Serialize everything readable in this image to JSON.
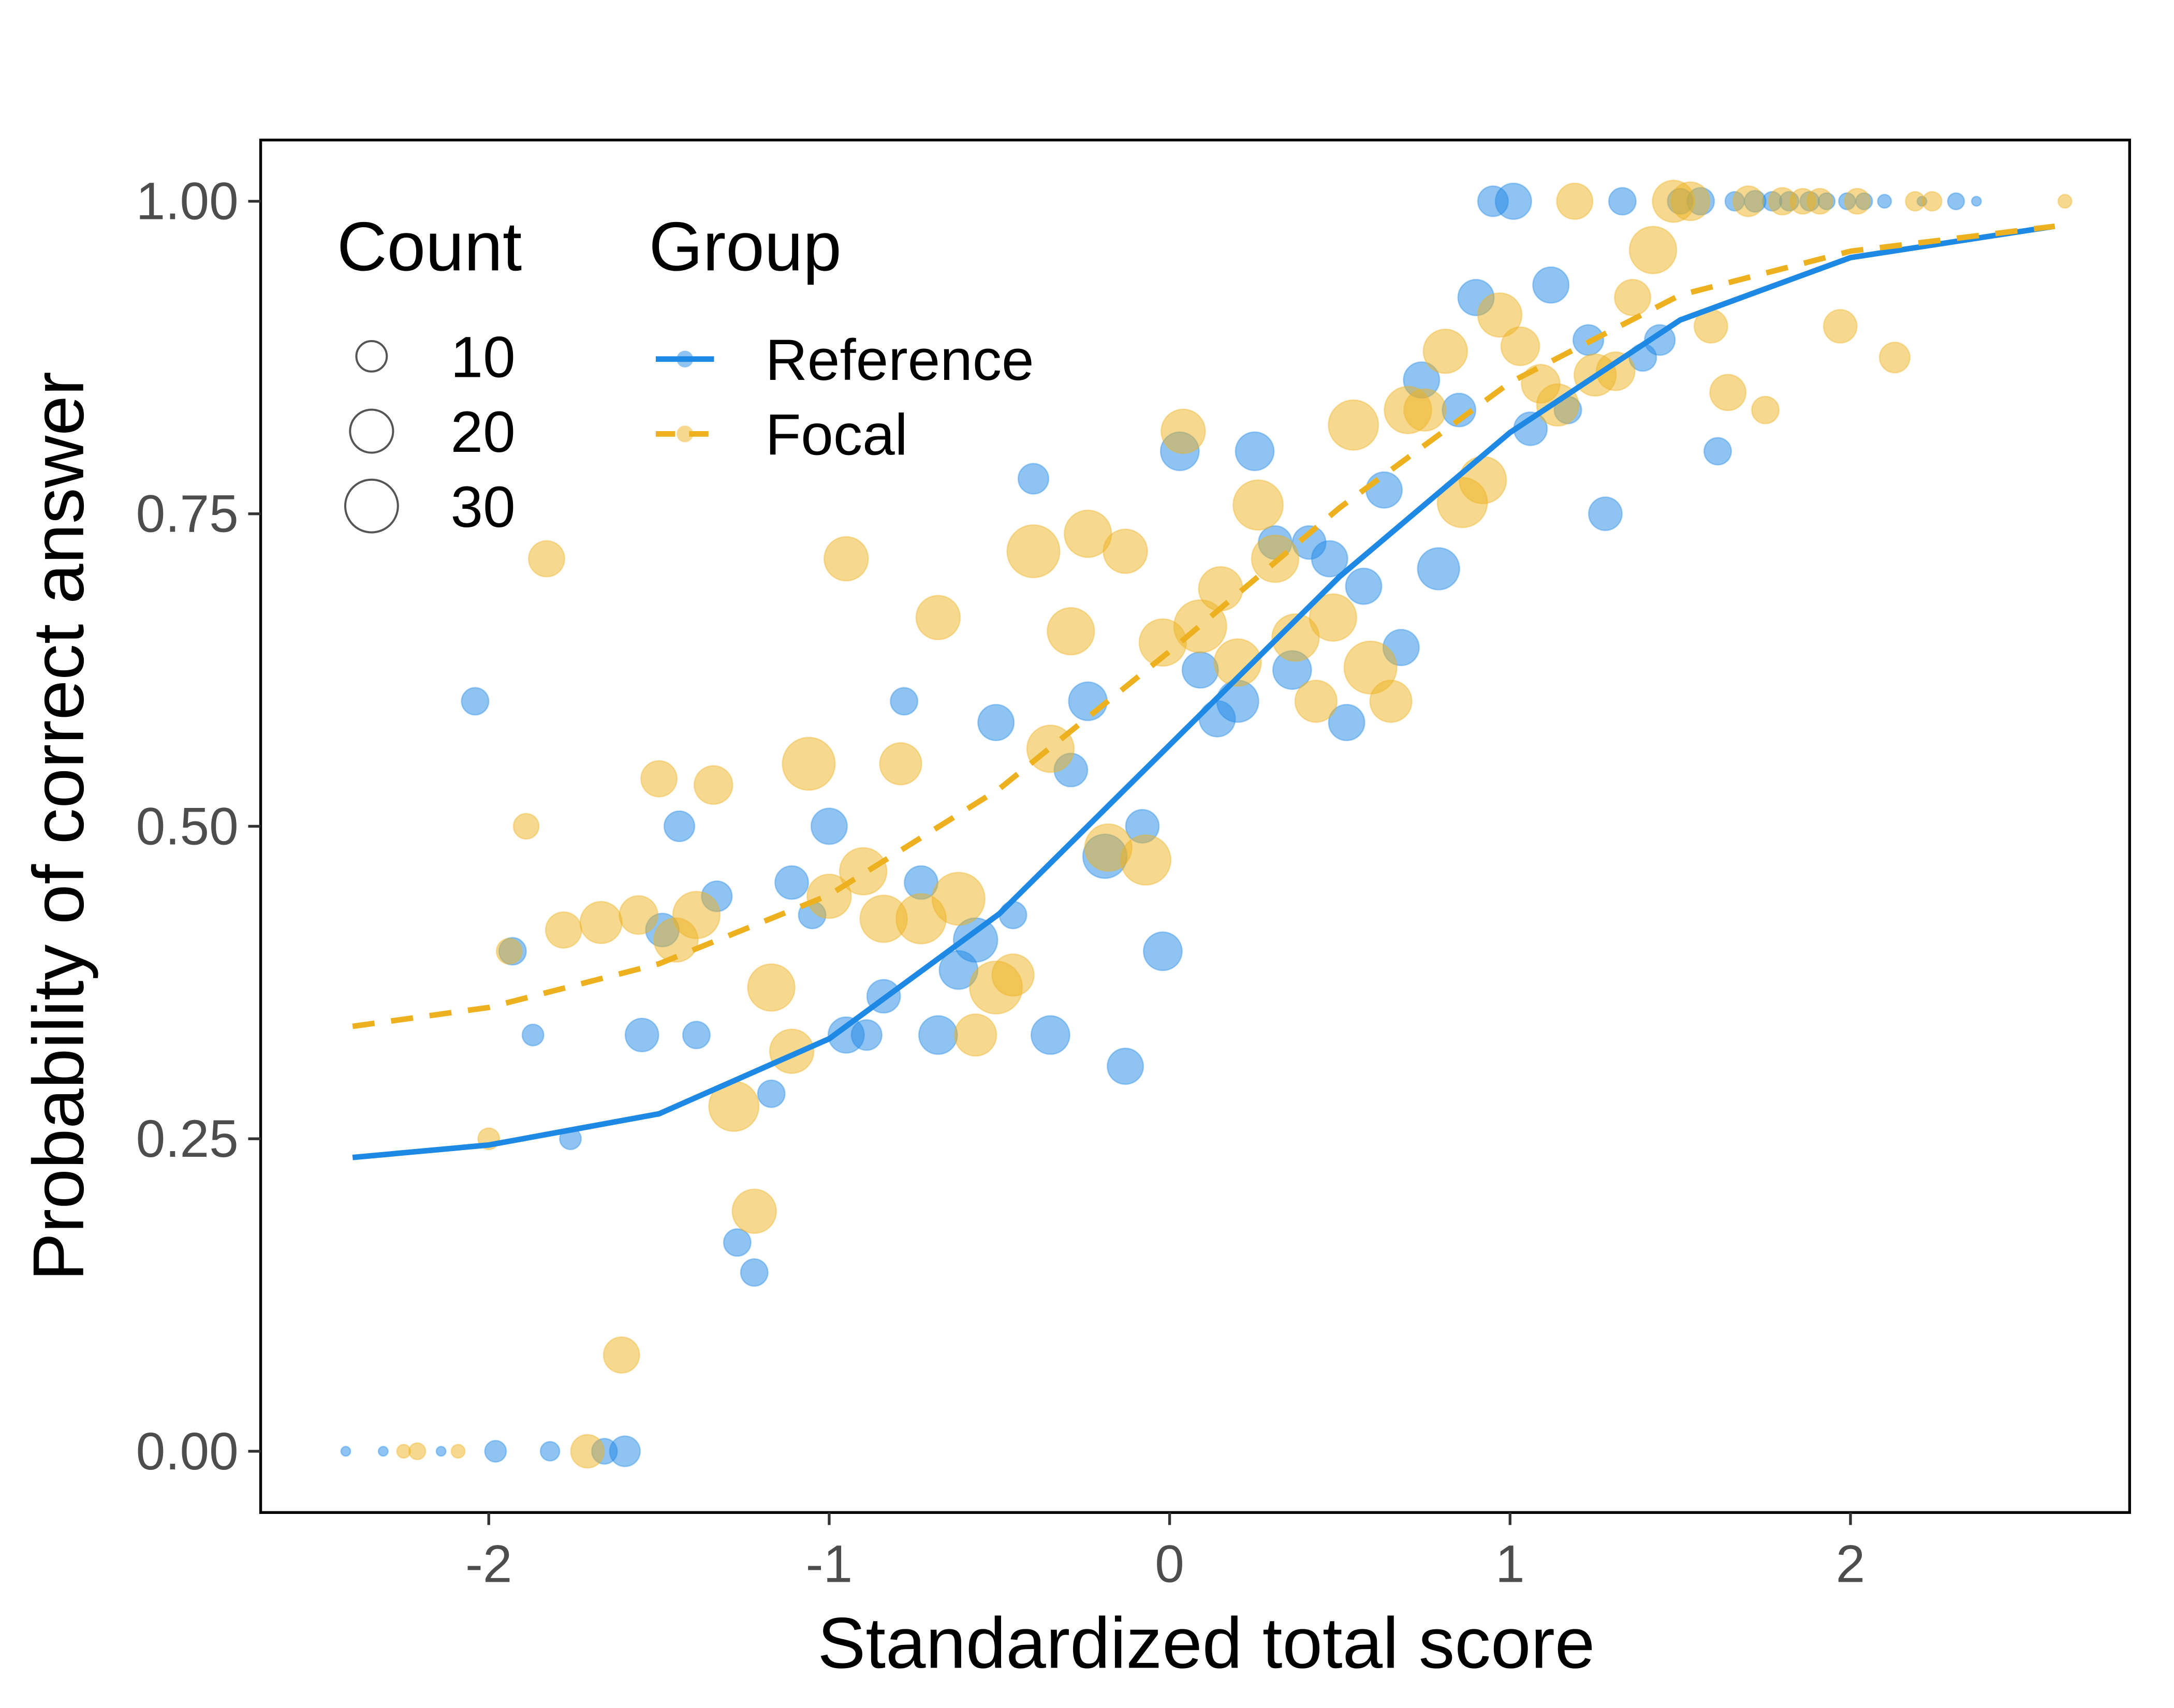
{
  "chart_data": {
    "type": "scatter",
    "xlabel": "Standardized total score",
    "ylabel": "Probability of correct answer",
    "xlim": [
      -2.67,
      2.82
    ],
    "ylim": [
      -0.049,
      1.049
    ],
    "xticks": [
      -2,
      -1,
      0,
      1,
      2
    ],
    "yticks": [
      {
        "value": 0,
        "label": "0.00"
      },
      {
        "value": 0.25,
        "label": "0.25"
      },
      {
        "value": 0.5,
        "label": "0.50"
      },
      {
        "value": 0.75,
        "label": "0.75"
      },
      {
        "value": 1,
        "label": "1.00"
      }
    ],
    "grid": false,
    "size_legend": {
      "title": "Count",
      "values": [
        10,
        20,
        30
      ]
    },
    "group_legend_title": "Group",
    "series": [
      {
        "name": "Reference",
        "color": "#1E88E5",
        "linestyle": "solid",
        "x": [
          -2.42,
          -2.31,
          -2.14,
          -1.98,
          -1.82,
          -1.66,
          -1.6,
          -2.04,
          -1.93,
          -1.87,
          -1.76,
          -1.55,
          -1.49,
          -1.44,
          -1.39,
          -1.33,
          -1.27,
          -1.22,
          -1.17,
          -1.11,
          -1.05,
          -1.0,
          -0.95,
          -0.89,
          -0.84,
          -0.78,
          -0.73,
          -0.68,
          -0.62,
          -0.57,
          -0.51,
          -0.46,
          -0.4,
          -0.35,
          -0.29,
          -0.24,
          -0.19,
          -0.13,
          -0.08,
          -0.02,
          0.03,
          0.09,
          0.14,
          0.2,
          0.25,
          0.31,
          0.36,
          0.41,
          0.47,
          0.52,
          0.57,
          0.63,
          0.68,
          0.74,
          0.79,
          0.85,
          0.9,
          0.95,
          1.01,
          1.06,
          1.12,
          1.17,
          1.23,
          1.28,
          1.33,
          1.39,
          1.44,
          1.5,
          1.56,
          1.61,
          1.66,
          1.72,
          1.77,
          1.82,
          1.88,
          1.93,
          1.99,
          2.04,
          2.1,
          2.21,
          2.31,
          2.37
        ],
        "values": [
          0,
          0,
          0,
          0,
          0,
          0,
          0,
          0.6,
          0.4,
          0.333,
          0.25,
          0.333,
          0.417,
          0.5,
          0.333,
          0.444,
          0.167,
          0.143,
          0.286,
          0.455,
          0.429,
          0.5,
          0.333,
          0.333,
          0.364,
          0.6,
          0.455,
          0.333,
          0.385,
          0.409,
          0.583,
          0.429,
          0.778,
          0.333,
          0.545,
          0.6,
          0.476,
          0.308,
          0.5,
          0.4,
          0.8,
          0.625,
          0.586,
          0.6,
          0.8,
          0.727,
          0.625,
          0.727,
          0.714,
          0.583,
          0.692,
          0.769,
          0.643,
          0.857,
          0.706,
          0.833,
          0.923,
          1,
          1,
          0.818,
          0.933,
          0.833,
          0.889,
          0.75,
          1,
          0.875,
          0.889,
          1,
          1,
          0.8,
          1,
          1,
          1,
          1,
          1,
          1,
          1,
          1,
          1,
          1,
          1,
          1
        ],
        "sizes": [
          1,
          1,
          1,
          5,
          4,
          7,
          10,
          8,
          8,
          5,
          5,
          12,
          12,
          10,
          8,
          10,
          8,
          8,
          8,
          12,
          8,
          14,
          14,
          10,
          12,
          8,
          12,
          16,
          16,
          21,
          14,
          8,
          10,
          16,
          12,
          16,
          21,
          14,
          12,
          16,
          16,
          14,
          14,
          19,
          16,
          12,
          16,
          12,
          14,
          14,
          14,
          14,
          14,
          14,
          19,
          12,
          14,
          10,
          14,
          12,
          14,
          8,
          10,
          12,
          8,
          8,
          10,
          7,
          8,
          8,
          4,
          5,
          4,
          4,
          4,
          3,
          3,
          3,
          2,
          1,
          3,
          1
        ],
        "fit_x": [
          -2.4,
          -2,
          -1.5,
          -1,
          -0.5,
          0,
          0.5,
          1,
          1.5,
          2,
          2.6
        ],
        "fit_values": [
          0.235,
          0.245,
          0.27,
          0.33,
          0.43,
          0.565,
          0.7,
          0.815,
          0.905,
          0.955,
          0.98
        ]
      },
      {
        "name": "Focal",
        "color": "#EDB120",
        "linestyle": "dashed",
        "x": [
          -2.25,
          -2.21,
          -2.09,
          -1.71,
          -2.0,
          -1.94,
          -1.89,
          -1.83,
          -1.78,
          -1.67,
          -1.61,
          -1.56,
          -1.5,
          -1.45,
          -1.39,
          -1.34,
          -1.28,
          -1.22,
          -1.17,
          -1.11,
          -1.06,
          -1.0,
          -0.95,
          -0.9,
          -0.84,
          -0.79,
          -0.73,
          -0.68,
          -0.62,
          -0.57,
          -0.51,
          -0.46,
          -0.4,
          -0.35,
          -0.29,
          -0.24,
          -0.18,
          -0.13,
          -0.07,
          -0.02,
          0.04,
          0.09,
          0.15,
          0.2,
          0.26,
          0.31,
          0.37,
          0.43,
          0.48,
          0.54,
          0.59,
          0.65,
          0.7,
          0.75,
          0.81,
          0.86,
          0.92,
          0.97,
          1.03,
          1.09,
          1.14,
          1.19,
          1.25,
          1.31,
          1.36,
          1.42,
          1.48,
          1.53,
          1.59,
          1.64,
          1.7,
          1.75,
          1.8,
          1.86,
          1.91,
          1.97,
          2.02,
          2.13,
          2.19,
          2.24,
          2.63
        ],
        "values": [
          0,
          0,
          0,
          0,
          0.25,
          0.4,
          0.5,
          0.714,
          0.417,
          0.423,
          0.077,
          0.429,
          0.538,
          0.409,
          0.429,
          0.533,
          0.276,
          0.192,
          0.371,
          0.32,
          0.55,
          0.444,
          0.714,
          0.464,
          0.426,
          0.55,
          0.426,
          0.667,
          0.442,
          0.333,
          0.371,
          0.381,
          0.72,
          0.562,
          0.656,
          0.734,
          0.483,
          0.72,
          0.473,
          0.647,
          0.816,
          0.66,
          0.69,
          0.631,
          0.757,
          0.714,
          0.651,
          0.6,
          0.667,
          0.821,
          0.627,
          0.6,
          0.833,
          0.833,
          0.88,
          0.759,
          0.777,
          0.909,
          0.884,
          0.854,
          0.837,
          1,
          0.861,
          0.864,
          0.923,
          0.961,
          1,
          1,
          0.9,
          0.847,
          1,
          0.833,
          1,
          1,
          1,
          0.9,
          1,
          0.875,
          1,
          1,
          1
        ],
        "sizes": [
          2,
          3,
          2,
          12,
          5,
          7,
          7,
          14,
          14,
          19,
          14,
          16,
          14,
          21,
          24,
          16,
          27,
          21,
          24,
          21,
          30,
          21,
          21,
          24,
          24,
          19,
          27,
          21,
          30,
          19,
          30,
          19,
          30,
          24,
          24,
          24,
          24,
          21,
          27,
          24,
          21,
          30,
          21,
          24,
          27,
          24,
          24,
          19,
          24,
          27,
          30,
          19,
          24,
          19,
          21,
          27,
          24,
          21,
          16,
          16,
          19,
          14,
          19,
          16,
          14,
          24,
          19,
          16,
          12,
          14,
          10,
          8,
          8,
          7,
          7,
          12,
          7,
          10,
          4,
          4,
          2
        ],
        "fit_x": [
          -2.4,
          -2,
          -1.5,
          -1,
          -0.5,
          0,
          0.5,
          1,
          1.5,
          2,
          2.6
        ],
        "fit_values": [
          0.34,
          0.355,
          0.39,
          0.445,
          0.53,
          0.64,
          0.755,
          0.855,
          0.925,
          0.96,
          0.98
        ]
      }
    ]
  }
}
